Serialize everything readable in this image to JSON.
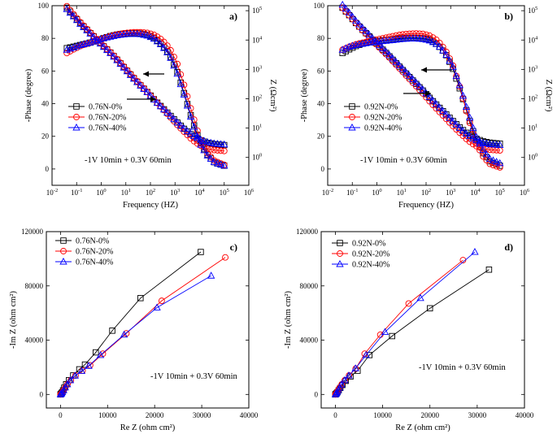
{
  "chart_data": [
    {
      "type": "line",
      "panel": "a)",
      "xlabel": "Frequency (HZ)",
      "ylabel": "-Phase (degree)",
      "ylabel_right": "Z (Ωcm²)",
      "x_scale": "log",
      "xlim": [
        0.01,
        1000000
      ],
      "ylim": [
        -10,
        100
      ],
      "y_ticks": [
        0,
        20,
        40,
        60,
        80,
        100
      ],
      "x_tick_labels": [
        "10-2",
        "10-1",
        "100",
        "101",
        "102",
        "103",
        "104",
        "105",
        "106"
      ],
      "y2_tick_labels": [
        "100",
        "101",
        "102",
        "103",
        "104",
        "105"
      ],
      "annotation": "-1V 10min + 0.3V 60min",
      "legend": [
        "0.76N-0%",
        "0.76N-20%",
        "0.76N-40%"
      ],
      "freq": [
        0.04,
        0.08,
        0.15,
        0.3,
        0.6,
        1.2,
        2.5,
        5,
        10,
        20,
        40,
        80,
        150,
        300,
        600,
        1200,
        2500,
        5000,
        10000,
        20000,
        40000,
        100000
      ],
      "series": [
        {
          "name": "0.76N-0%",
          "phase": [
            74,
            75,
            76,
            77,
            78.5,
            80,
            81.5,
            82.5,
            83,
            83.2,
            83,
            82,
            80,
            76,
            70,
            60,
            45,
            30,
            17,
            9,
            4,
            2
          ],
          "logZ": [
            5.1,
            4.8,
            4.55,
            4.3,
            4.05,
            3.8,
            3.55,
            3.28,
            3.0,
            2.72,
            2.45,
            2.2,
            1.95,
            1.7,
            1.45,
            1.2,
            0.95,
            0.75,
            0.6,
            0.5,
            0.45,
            0.42
          ]
        },
        {
          "name": "0.76N-20%",
          "phase": [
            71,
            73.5,
            75.5,
            77,
            78.5,
            80,
            81.5,
            82.5,
            83.3,
            83.7,
            83.7,
            83.3,
            82,
            79,
            74,
            65,
            50,
            34,
            19,
            10,
            5,
            2.5
          ],
          "logZ": [
            5.15,
            4.85,
            4.58,
            4.32,
            4.07,
            3.82,
            3.56,
            3.3,
            3.02,
            2.74,
            2.47,
            2.2,
            1.95,
            1.68,
            1.4,
            1.12,
            0.85,
            0.6,
            0.42,
            0.3,
            0.25,
            0.22
          ]
        },
        {
          "name": "0.76N-40%",
          "phase": [
            73,
            74.5,
            76,
            77,
            78.5,
            80,
            81,
            82,
            82.5,
            82.7,
            82.5,
            81.5,
            79.5,
            75.5,
            69.5,
            59,
            44,
            29,
            16,
            8.5,
            4,
            2
          ],
          "logZ": [
            5.05,
            4.78,
            4.52,
            4.28,
            4.03,
            3.78,
            3.53,
            3.26,
            2.98,
            2.7,
            2.44,
            2.19,
            1.94,
            1.69,
            1.45,
            1.2,
            0.96,
            0.76,
            0.62,
            0.52,
            0.47,
            0.44
          ]
        }
      ]
    },
    {
      "type": "line",
      "panel": "b)",
      "xlabel": "Frequency (HZ)",
      "ylabel": "-Phase (degree)",
      "ylabel_right": "Z (Ωcm²)",
      "x_scale": "log",
      "xlim": [
        0.01,
        1000000
      ],
      "ylim": [
        -10,
        100
      ],
      "y_ticks": [
        0,
        20,
        40,
        60,
        80,
        100
      ],
      "x_tick_labels": [
        "10-2",
        "10-1",
        "100",
        "101",
        "102",
        "103",
        "104",
        "105",
        "106"
      ],
      "y2_tick_labels": [
        "100",
        "101",
        "102",
        "103",
        "104",
        "105"
      ],
      "annotation": "-1V 10min + 0.3V 60min",
      "legend": [
        "0.92N-0%",
        "0.92N-20%",
        "0.92N-40%"
      ],
      "freq": [
        0.04,
        0.08,
        0.15,
        0.3,
        0.6,
        1.2,
        2.5,
        5,
        10,
        20,
        40,
        80,
        150,
        300,
        600,
        1200,
        2500,
        5000,
        10000,
        20000,
        40000,
        100000
      ],
      "series": [
        {
          "name": "0.92N-0%",
          "phase": [
            71,
            73.5,
            75.5,
            77,
            78,
            78.5,
            79,
            79.5,
            80,
            80.3,
            80.3,
            80,
            79,
            76,
            71,
            62,
            48,
            33,
            19,
            10,
            4.5,
            2
          ],
          "logZ": [
            5.1,
            4.82,
            4.55,
            4.3,
            4.05,
            3.8,
            3.54,
            3.28,
            3.02,
            2.76,
            2.5,
            2.25,
            2.0,
            1.75,
            1.5,
            1.25,
            1.0,
            0.8,
            0.65,
            0.55,
            0.5,
            0.47
          ]
        },
        {
          "name": "0.92N-20%",
          "phase": [
            73,
            75,
            76.5,
            77.5,
            78.5,
            79.5,
            80.5,
            81.5,
            82.3,
            82.8,
            83,
            82.7,
            81.5,
            78.5,
            73,
            64,
            49,
            32,
            17,
            8,
            3,
            1
          ],
          "logZ": [
            5.1,
            4.82,
            4.55,
            4.28,
            4.02,
            3.76,
            3.5,
            3.23,
            2.96,
            2.69,
            2.42,
            2.15,
            1.88,
            1.61,
            1.35,
            1.08,
            0.82,
            0.58,
            0.4,
            0.3,
            0.26,
            0.24
          ]
        },
        {
          "name": "0.92N-40%",
          "phase": [
            73,
            75,
            76,
            76.8,
            77.5,
            78,
            78.5,
            79,
            79.5,
            79.8,
            79.8,
            79.5,
            78.5,
            76,
            71,
            63,
            50,
            35,
            21,
            12,
            6,
            3.5
          ],
          "logZ": [
            5.2,
            4.9,
            4.62,
            4.36,
            4.1,
            3.84,
            3.58,
            3.32,
            3.06,
            2.8,
            2.54,
            2.28,
            2.02,
            1.76,
            1.5,
            1.24,
            0.98,
            0.76,
            0.6,
            0.5,
            0.45,
            0.42
          ]
        }
      ]
    },
    {
      "type": "line",
      "panel": "c)",
      "xlabel": "Re Z (ohm cm²)",
      "ylabel": "-Im Z (ohm cm²)",
      "xlim": [
        -3000,
        40000
      ],
      "ylim": [
        -10000,
        120000
      ],
      "x_ticks": [
        0,
        10000,
        20000,
        30000,
        40000
      ],
      "y_ticks": [
        0,
        40000,
        80000,
        120000
      ],
      "annotation": "-1V 10min + 0.3V 60min",
      "legend": [
        "0.76N-0%",
        "0.76N-20%",
        "0.76N-40%"
      ],
      "series": [
        {
          "name": "0.76N-0%",
          "x": [
            0,
            100,
            200,
            350,
            550,
            800,
            1200,
            1800,
            2700,
            4000,
            5200,
            7500,
            11000,
            17000,
            29800
          ],
          "y": [
            0,
            300,
            800,
            1600,
            3000,
            5000,
            7500,
            10500,
            14000,
            18500,
            22000,
            31000,
            47000,
            71000,
            105000
          ]
        },
        {
          "name": "0.76N-20%",
          "x": [
            0,
            120,
            250,
            450,
            700,
            1050,
            1500,
            2200,
            3200,
            4700,
            6300,
            9000,
            14000,
            21500,
            35000
          ],
          "y": [
            0,
            350,
            900,
            1800,
            3200,
            5200,
            7500,
            10500,
            14000,
            17500,
            21500,
            30000,
            45000,
            69000,
            101000
          ]
        },
        {
          "name": "0.76N-40%",
          "x": [
            0,
            110,
            230,
            420,
            660,
            1000,
            1450,
            2100,
            3100,
            4500,
            6000,
            8500,
            13500,
            20500,
            32000
          ],
          "y": [
            0,
            320,
            850,
            1700,
            3100,
            5100,
            7400,
            10400,
            13800,
            17200,
            21000,
            29000,
            44000,
            64000,
            87500
          ]
        }
      ]
    },
    {
      "type": "line",
      "panel": "d)",
      "xlabel": "Re Z (ohm cm²)",
      "ylabel": "-Im Z (ohm cm²)",
      "xlim": [
        -3000,
        40000
      ],
      "ylim": [
        -10000,
        120000
      ],
      "x_ticks": [
        0,
        10000,
        20000,
        30000,
        40000
      ],
      "y_ticks": [
        0,
        40000,
        80000,
        120000
      ],
      "annotation": "-1V 10min + 0.3V 60min",
      "legend": [
        "0.92N-0%",
        "0.92N-20%",
        "0.92N-40%"
      ],
      "series": [
        {
          "name": "0.92N-0%",
          "x": [
            0,
            120,
            260,
            450,
            700,
            1050,
            1500,
            2200,
            3200,
            4700,
            7200,
            12000,
            20000,
            32500
          ],
          "y": [
            0,
            320,
            850,
            1650,
            3000,
            4800,
            7000,
            10000,
            13200,
            17500,
            29000,
            43000,
            63500,
            92000
          ]
        },
        {
          "name": "0.92N-20%",
          "x": [
            0,
            100,
            220,
            380,
            600,
            900,
            1350,
            2000,
            2900,
            4300,
            6200,
            9500,
            15500,
            27000
          ],
          "y": [
            0,
            330,
            880,
            1700,
            3100,
            5000,
            7400,
            10500,
            14000,
            19000,
            30000,
            44000,
            67000,
            99000
          ]
        },
        {
          "name": "0.92N-40%",
          "x": [
            0,
            100,
            210,
            370,
            580,
            880,
            1300,
            1950,
            2850,
            4250,
            6500,
            10500,
            18000,
            29500
          ],
          "y": [
            0,
            330,
            870,
            1680,
            3050,
            4950,
            7300,
            10400,
            13900,
            19200,
            29000,
            46000,
            71000,
            105000
          ]
        }
      ]
    }
  ]
}
